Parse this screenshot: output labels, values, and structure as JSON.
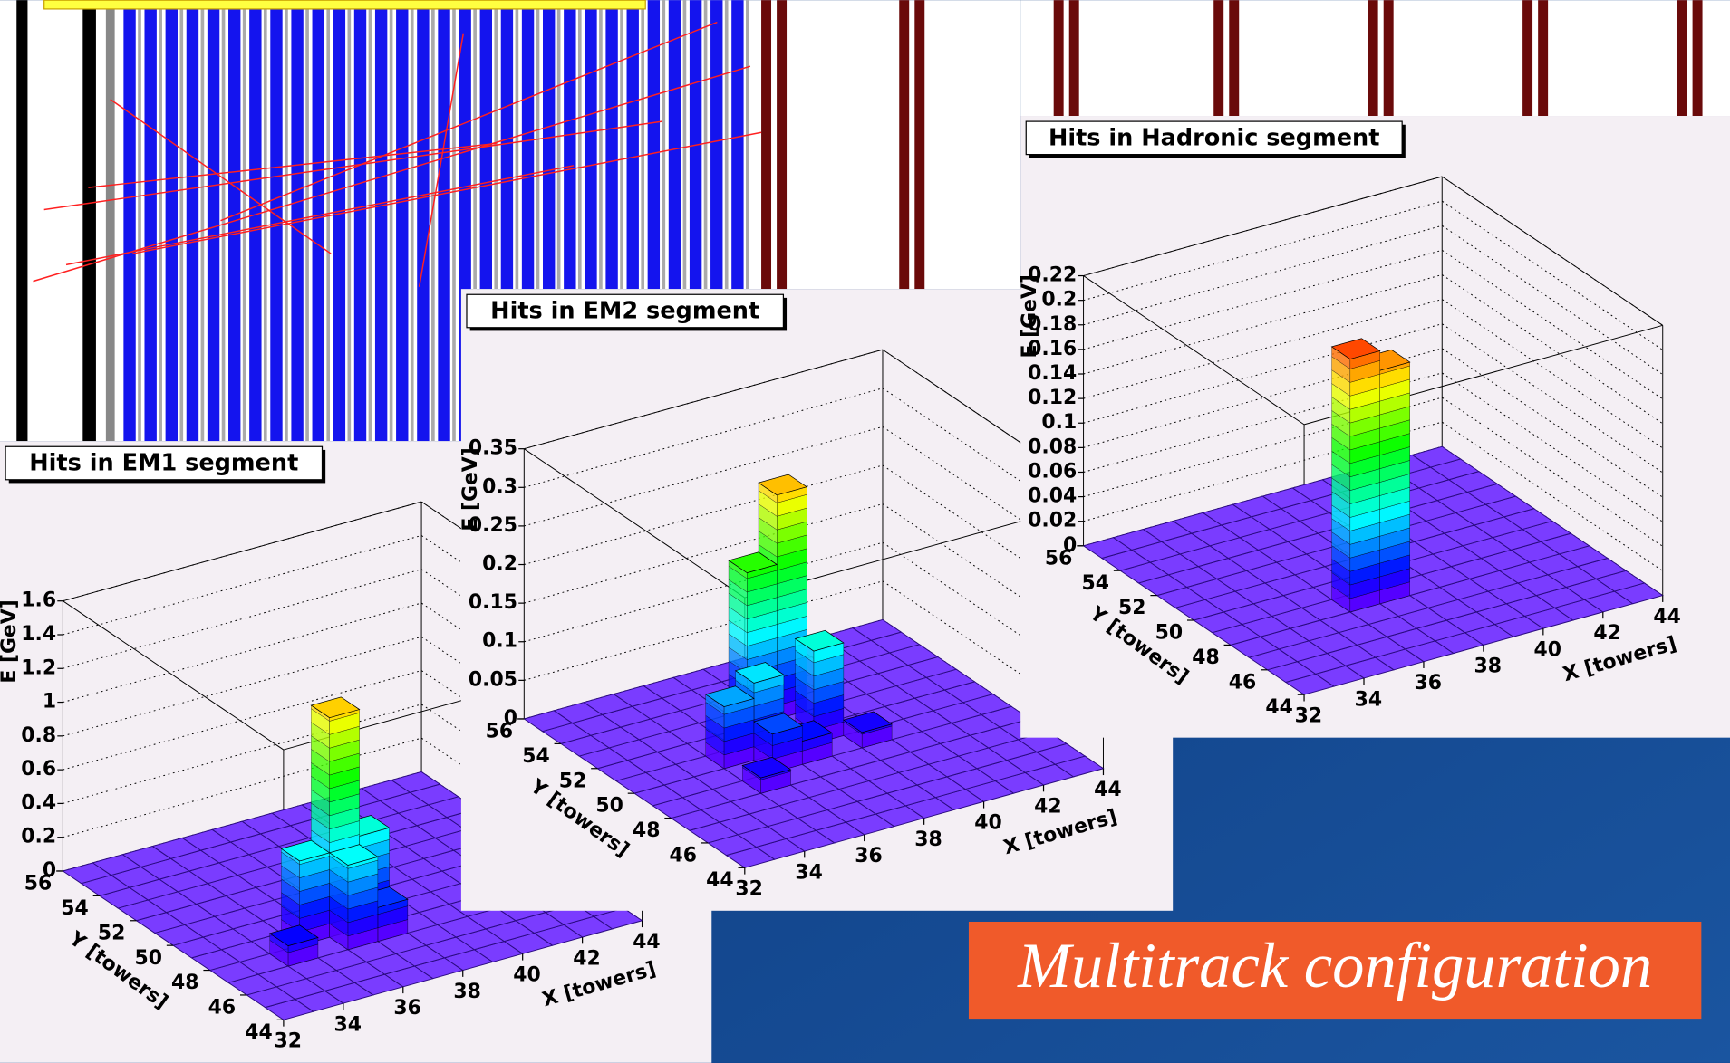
{
  "chart_data": [
    {
      "type": "lego",
      "title": "Hits in EM1 segment",
      "x_label": "X [towers]",
      "y_label": "Y [towers]",
      "z_label": "E [GeV]",
      "xlim": [
        32,
        44
      ],
      "ylim": [
        44,
        56
      ],
      "zlim": [
        0,
        1.6
      ],
      "xticks": [
        32,
        34,
        36,
        38,
        40,
        42,
        44
      ],
      "yticks": [
        44,
        46,
        48,
        50,
        52,
        54,
        56
      ],
      "zticks": [
        0,
        0.2,
        0.4,
        0.6,
        0.8,
        1,
        1.2,
        1.4,
        1.6
      ],
      "towers": [
        {
          "x": 36,
          "y": 48,
          "value": 1.3
        },
        {
          "x": 37,
          "y": 48,
          "value": 0.55
        },
        {
          "x": 35,
          "y": 48,
          "value": 0.5
        },
        {
          "x": 36,
          "y": 47,
          "value": 0.5
        },
        {
          "x": 34,
          "y": 47,
          "value": 0.12
        },
        {
          "x": 37,
          "y": 47,
          "value": 0.2
        }
      ]
    },
    {
      "type": "lego",
      "title": "Hits in EM2 segment",
      "x_label": "X [towers]",
      "y_label": "Y [towers]",
      "z_label": "E [GeV]",
      "xlim": [
        32,
        44
      ],
      "ylim": [
        44,
        56
      ],
      "zlim": [
        0,
        0.35
      ],
      "xticks": [
        32,
        34,
        36,
        38,
        40,
        42,
        44
      ],
      "yticks": [
        44,
        46,
        48,
        50,
        52,
        54,
        56
      ],
      "zticks": [
        0,
        0.05,
        0.1,
        0.15,
        0.2,
        0.25,
        0.3,
        0.35
      ],
      "towers": [
        {
          "x": 38,
          "y": 52,
          "value": 0.29
        },
        {
          "x": 37,
          "y": 52,
          "value": 0.2
        },
        {
          "x": 38,
          "y": 50,
          "value": 0.12
        },
        {
          "x": 36,
          "y": 50,
          "value": 0.1
        },
        {
          "x": 35,
          "y": 50,
          "value": 0.08
        },
        {
          "x": 36,
          "y": 49,
          "value": 0.05
        },
        {
          "x": 37,
          "y": 49,
          "value": 0.03
        },
        {
          "x": 39,
          "y": 49,
          "value": 0.02
        },
        {
          "x": 35,
          "y": 48,
          "value": 0.02
        }
      ]
    },
    {
      "type": "lego",
      "title": "Hits in Hadronic segment",
      "x_label": "X [towers]",
      "y_label": "Y [towers]",
      "z_label": "E [GeV]",
      "xlim": [
        32,
        44
      ],
      "ylim": [
        44,
        56
      ],
      "zlim": [
        0,
        0.22
      ],
      "xticks": [
        32,
        34,
        36,
        38,
        40,
        42,
        44
      ],
      "yticks": [
        44,
        46,
        48,
        50,
        52,
        54,
        56
      ],
      "zticks": [
        0,
        0.02,
        0.04,
        0.06,
        0.08,
        0.1,
        0.12,
        0.14,
        0.16,
        0.18,
        0.2,
        0.22
      ],
      "towers": [
        {
          "x": 36,
          "y": 48,
          "value": 0.206
        },
        {
          "x": 37,
          "y": 48,
          "value": 0.19
        }
      ]
    }
  ],
  "caption": "Multitrack configuration"
}
